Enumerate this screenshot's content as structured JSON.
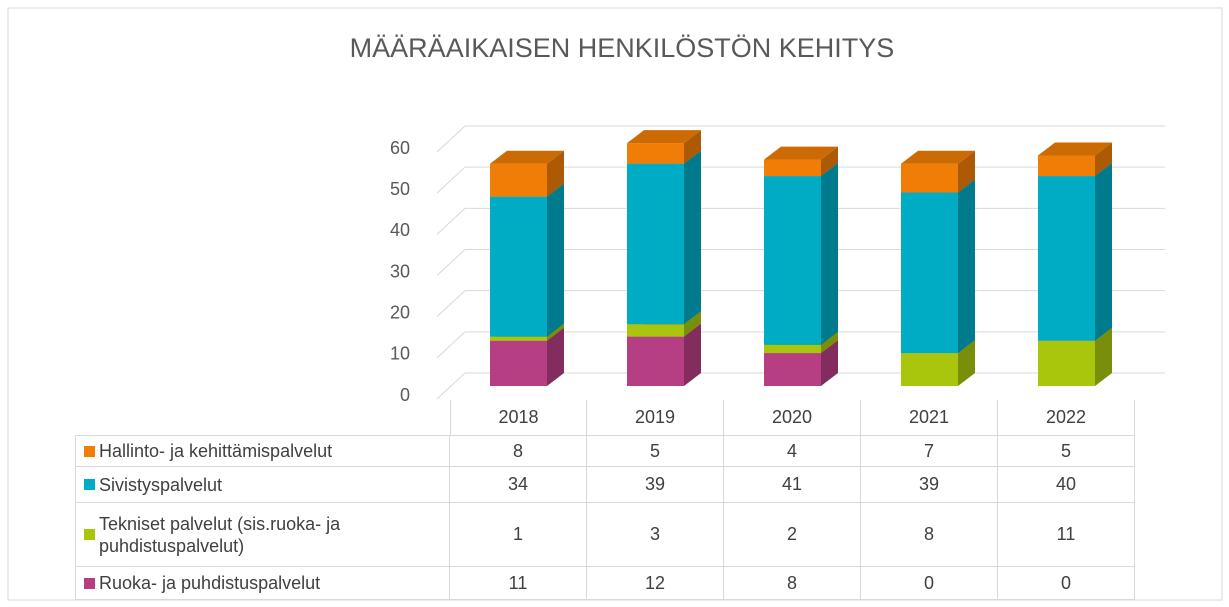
{
  "chart_data": {
    "type": "bar3d_stacked",
    "title": "MÄÄRÄAIKAISEN HENKILÖSTÖN KEHITYS",
    "categories": [
      "2018",
      "2019",
      "2020",
      "2021",
      "2022"
    ],
    "series": [
      {
        "name": "Hallinto- ja kehittämispalvelut",
        "color": "#f07d05",
        "values": [
          8,
          5,
          4,
          7,
          5
        ]
      },
      {
        "name": "Sivistyspalvelut",
        "color": "#00abc4",
        "values": [
          34,
          39,
          41,
          39,
          40
        ]
      },
      {
        "name": "Tekniset palvelut (sis.ruoka- ja puhdistuspalvelut)",
        "color": "#a9c60c",
        "values": [
          1,
          3,
          2,
          8,
          11
        ]
      },
      {
        "name": "Ruoka- ja puhdistuspalvelut",
        "color": "#b53f82",
        "values": [
          11,
          12,
          8,
          0,
          0
        ]
      }
    ],
    "ylim": [
      0,
      60
    ],
    "yticks": [
      0,
      10,
      20,
      30,
      40,
      50,
      60
    ],
    "grid": true
  }
}
